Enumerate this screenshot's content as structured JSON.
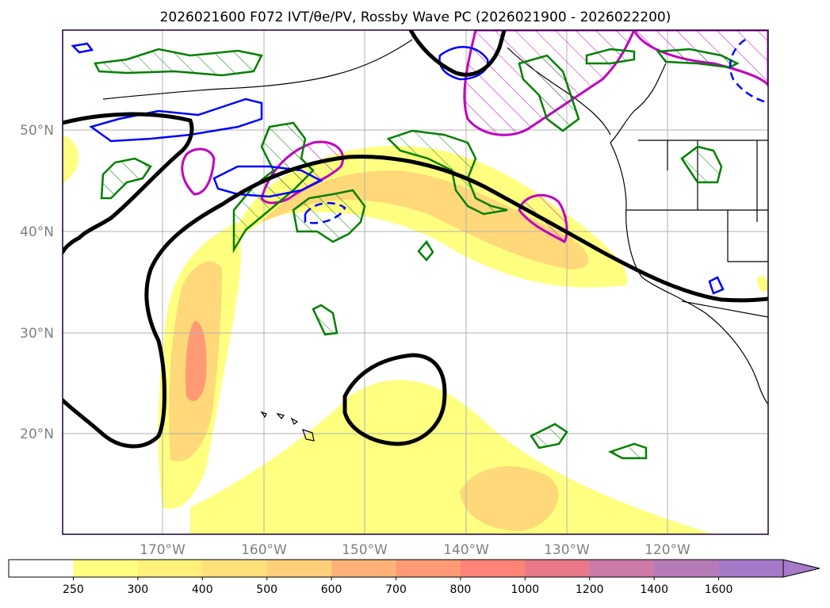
{
  "title": "2026021600 F072 IVT/θe/PV, Rossby Wave PC (2026021900 - 2026022200)",
  "map": {
    "lat_labels": [
      "50°N",
      "40°N",
      "30°N",
      "20°N"
    ],
    "lon_labels": [
      "170°W",
      "160°W",
      "150°W",
      "140°W",
      "130°W",
      "120°W"
    ]
  },
  "colorbar": {
    "labels": [
      "250",
      "300",
      "400",
      "500",
      "600",
      "700",
      "800",
      "1000",
      "1200",
      "1400",
      "1600"
    ],
    "colors": [
      "#ffffff",
      "#ffff80",
      "#fff07a",
      "#ffe07a",
      "#ffd07a",
      "#ffb278",
      "#ff9a75",
      "#ff8478",
      "#e8788a",
      "#cc7aa8",
      "#b77ab8",
      "#a67ac8"
    ]
  },
  "legend_colors": {
    "ivt_fill_low": "#ffff80",
    "ivt_fill_mid": "#ffd87a",
    "ivt_fill_high": "#ff9a75",
    "rossby_wave_pc": "#000000",
    "theta_e_contour": "#008000",
    "pv_contour": "#c000c0",
    "negative_pc_contour": "#0000ff"
  }
}
